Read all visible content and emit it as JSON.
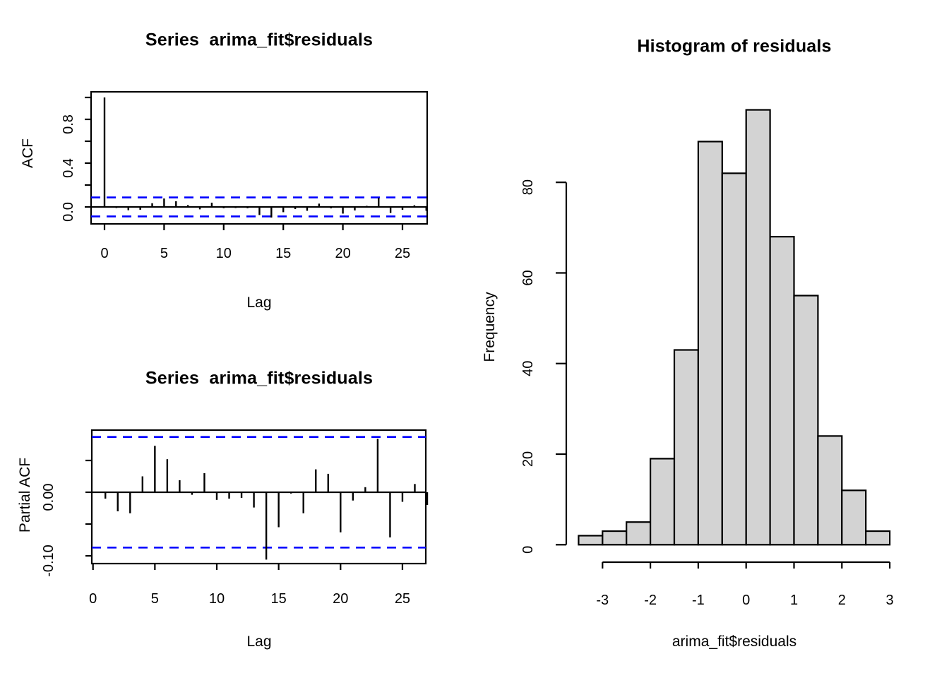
{
  "figure_background": "#ffffff",
  "colors": {
    "axis": "#000000",
    "ci_band": "#0000ff",
    "hist_bar_fill": "#d3d3d3",
    "hist_bar_border": "#000000"
  },
  "chart_data": [
    {
      "id": "acf",
      "type": "bar",
      "title": "Series  arima_fit$residuals",
      "xlabel": "Lag",
      "ylabel": "ACF",
      "x_range": [
        0,
        27
      ],
      "y_range": [
        -0.12,
        1.0
      ],
      "conf_band": 0.087,
      "grid": false,
      "lags": [
        0,
        1,
        2,
        3,
        4,
        5,
        6,
        7,
        8,
        9,
        10,
        11,
        12,
        13,
        14,
        15,
        16,
        17,
        18,
        19,
        20,
        21,
        22,
        23,
        24,
        25,
        26,
        27
      ],
      "values": [
        1.0,
        -0.01,
        -0.03,
        -0.026,
        0.034,
        0.077,
        0.052,
        0.017,
        -0.022,
        0.039,
        -0.012,
        -0.01,
        -0.012,
        -0.074,
        -0.097,
        -0.048,
        -0.019,
        -0.035,
        0.03,
        -0.013,
        -0.061,
        -0.032,
        0.01,
        0.083,
        -0.055,
        -0.026,
        0.015,
        -0.035
      ],
      "x_ticks": [
        {
          "v": 0,
          "label": "0"
        },
        {
          "v": 5,
          "label": "5"
        },
        {
          "v": 10,
          "label": "10"
        },
        {
          "v": 15,
          "label": "15"
        },
        {
          "v": 20,
          "label": "20"
        },
        {
          "v": 25,
          "label": "25"
        }
      ],
      "y_ticks": [
        {
          "v": 0.0,
          "label": "0.0"
        },
        {
          "v": 0.2,
          "label": ""
        },
        {
          "v": 0.4,
          "label": "0.4"
        },
        {
          "v": 0.6,
          "label": ""
        },
        {
          "v": 0.8,
          "label": "0.8"
        },
        {
          "v": 1.0,
          "label": ""
        }
      ]
    },
    {
      "id": "pacf",
      "type": "bar",
      "title": "Series  arima_fit$residuals",
      "xlabel": "Lag",
      "ylabel": "Partial ACF",
      "x_range": [
        0,
        27
      ],
      "y_range": [
        -0.112,
        0.098
      ],
      "conf_band": 0.087,
      "grid": false,
      "lags": [
        1,
        2,
        3,
        4,
        5,
        6,
        7,
        8,
        9,
        10,
        11,
        12,
        13,
        14,
        15,
        16,
        17,
        18,
        19,
        20,
        21,
        22,
        23,
        24,
        25,
        26,
        27
      ],
      "values": [
        -0.01,
        -0.03,
        -0.033,
        0.025,
        0.073,
        0.052,
        0.019,
        -0.004,
        0.03,
        -0.012,
        -0.01,
        -0.009,
        -0.024,
        -0.106,
        -0.055,
        -0.002,
        -0.033,
        0.036,
        0.029,
        -0.063,
        -0.013,
        0.008,
        0.084,
        -0.071,
        -0.015,
        0.013,
        -0.02
      ],
      "x_ticks": [
        {
          "v": 0,
          "label": "0"
        },
        {
          "v": 5,
          "label": "5"
        },
        {
          "v": 10,
          "label": "10"
        },
        {
          "v": 15,
          "label": "15"
        },
        {
          "v": 20,
          "label": "20"
        },
        {
          "v": 25,
          "label": "25"
        }
      ],
      "y_ticks": [
        {
          "v": 0.05,
          "label": ""
        },
        {
          "v": 0.0,
          "label": "0.00"
        },
        {
          "v": -0.05,
          "label": ""
        },
        {
          "v": -0.1,
          "label": "-0.10"
        }
      ]
    },
    {
      "id": "hist",
      "type": "histogram",
      "title": "Histogram of residuals",
      "xlabel": "arima_fit$residuals",
      "ylabel": "Frequency",
      "bin_start": -3.5,
      "bin_width": 0.5,
      "counts": [
        2,
        3,
        5,
        19,
        43,
        89,
        82,
        96,
        68,
        55,
        24,
        12,
        3
      ],
      "x_ticks": [
        {
          "v": -3,
          "label": "-3"
        },
        {
          "v": -2,
          "label": "-2"
        },
        {
          "v": -1,
          "label": "-1"
        },
        {
          "v": 0,
          "label": "0"
        },
        {
          "v": 1,
          "label": "1"
        },
        {
          "v": 2,
          "label": "2"
        },
        {
          "v": 3,
          "label": "3"
        }
      ],
      "y_ticks": [
        {
          "v": 0,
          "label": "0"
        },
        {
          "v": 20,
          "label": "20"
        },
        {
          "v": 40,
          "label": "40"
        },
        {
          "v": 60,
          "label": "60"
        },
        {
          "v": 80,
          "label": "80"
        }
      ]
    }
  ]
}
